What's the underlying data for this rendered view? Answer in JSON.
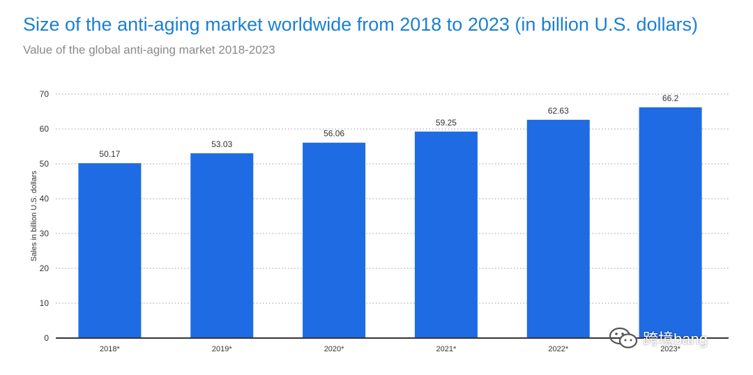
{
  "colors": {
    "bar": "#1f6be3",
    "title": "#1a7fd4",
    "subtitle": "#8a8a8a",
    "grid": "#9a9a9a",
    "axis": "#333333"
  },
  "chart_data": {
    "type": "bar",
    "title": "Size of the anti-aging market worldwide from 2018 to 2023 (in billion U.S. dollars)",
    "subtitle": "Value of the global anti-aging market 2018-2023",
    "xlabel": "",
    "ylabel": "Sales in billion U.S. dollars",
    "categories": [
      "2018*",
      "2019*",
      "2020*",
      "2021*",
      "2022*",
      "2023*"
    ],
    "values": [
      50.17,
      53.03,
      56.06,
      59.25,
      62.63,
      66.2
    ],
    "value_labels": [
      "50.17",
      "53.03",
      "56.06",
      "59.25",
      "62.63",
      "66.2"
    ],
    "ylim": [
      0,
      70
    ],
    "yticks": [
      0,
      10,
      20,
      30,
      40,
      50,
      60,
      70
    ],
    "grid": true,
    "grid_style": "dotted"
  },
  "watermark": {
    "icon": "wechat-icon",
    "text": "跨境bang"
  }
}
